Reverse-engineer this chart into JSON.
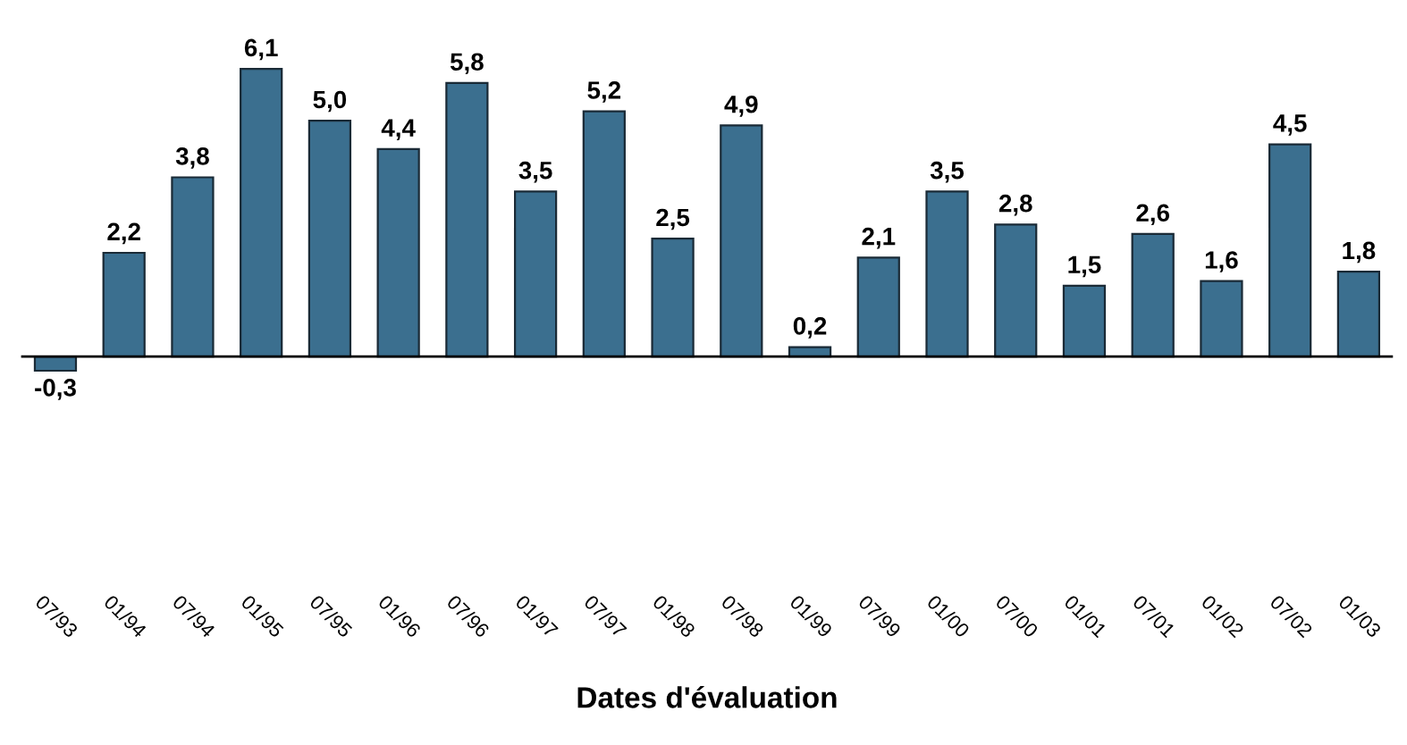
{
  "chart_data": {
    "type": "bar",
    "xlabel": "Dates d'évaluation",
    "categories": [
      "07/93",
      "01/94",
      "07/94",
      "01/95",
      "07/95",
      "01/96",
      "07/96",
      "01/97",
      "07/97",
      "01/98",
      "07/98",
      "01/99",
      "07/99",
      "01/00",
      "07/00",
      "01/01",
      "07/01",
      "01/02",
      "07/02",
      "01/03"
    ],
    "values": [
      -0.3,
      2.2,
      3.8,
      6.1,
      5.0,
      4.4,
      5.8,
      3.5,
      5.2,
      2.5,
      4.9,
      0.2,
      2.1,
      3.5,
      2.8,
      1.5,
      2.6,
      1.6,
      4.5,
      1.8
    ],
    "value_labels": [
      "-0,3",
      "2,2",
      "3,8",
      "6,1",
      "5,0",
      "4,4",
      "5,8",
      "3,5",
      "5,2",
      "2,5",
      "4,9",
      "0,2",
      "2,1",
      "3,5",
      "2,8",
      "1,5",
      "2,6",
      "1,6",
      "4,5",
      "1,8"
    ],
    "color": "#3b6f8f",
    "grid": false,
    "legend": false
  }
}
